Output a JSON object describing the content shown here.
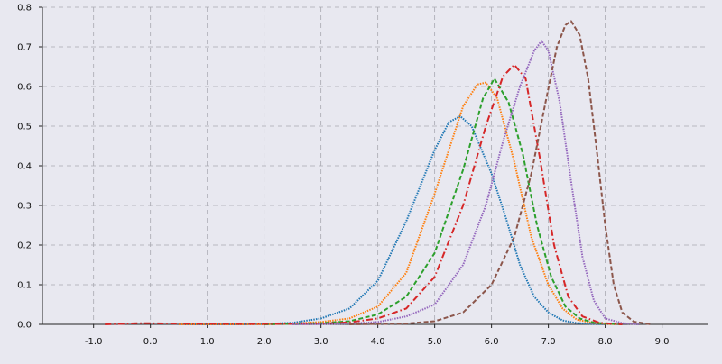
{
  "chart_data": {
    "type": "line",
    "title": "",
    "xlabel": "",
    "ylabel": "",
    "xlim": [
      -1.9,
      9.8
    ],
    "ylim": [
      0,
      0.8
    ],
    "x_ticks": [
      -1.0,
      0.0,
      1.0,
      2.0,
      3.0,
      4.0,
      5.0,
      6.0,
      7.0,
      8.0,
      9.0
    ],
    "y_ticks": [
      0.0,
      0.1,
      0.2,
      0.3,
      0.4,
      0.5,
      0.6,
      0.7,
      0.8
    ],
    "grid": true,
    "legend": "none",
    "background": "#e8e8f0",
    "series": [
      {
        "color": "#1f77b4",
        "dash": "dotted",
        "points": [
          [
            0.6,
            0.0
          ],
          [
            1.5,
            0.0
          ],
          [
            2.0,
            0.001
          ],
          [
            2.5,
            0.004
          ],
          [
            3.0,
            0.015
          ],
          [
            3.5,
            0.04
          ],
          [
            4.0,
            0.11
          ],
          [
            4.5,
            0.26
          ],
          [
            5.0,
            0.44
          ],
          [
            5.25,
            0.51
          ],
          [
            5.45,
            0.525
          ],
          [
            5.65,
            0.5
          ],
          [
            6.0,
            0.38
          ],
          [
            6.25,
            0.27
          ],
          [
            6.5,
            0.15
          ],
          [
            6.75,
            0.07
          ],
          [
            7.0,
            0.03
          ],
          [
            7.25,
            0.01
          ],
          [
            7.5,
            0.003
          ],
          [
            8.0,
            0.0
          ]
        ]
      },
      {
        "color": "#ff7f0e",
        "dash": "dotted",
        "points": [
          [
            0.5,
            0.0
          ],
          [
            2.0,
            0.0
          ],
          [
            2.5,
            0.002
          ],
          [
            3.0,
            0.006
          ],
          [
            3.5,
            0.015
          ],
          [
            4.0,
            0.045
          ],
          [
            4.5,
            0.13
          ],
          [
            5.0,
            0.33
          ],
          [
            5.5,
            0.55
          ],
          [
            5.75,
            0.605
          ],
          [
            5.9,
            0.61
          ],
          [
            6.1,
            0.57
          ],
          [
            6.4,
            0.41
          ],
          [
            6.7,
            0.22
          ],
          [
            7.0,
            0.1
          ],
          [
            7.25,
            0.04
          ],
          [
            7.5,
            0.012
          ],
          [
            7.8,
            0.003
          ],
          [
            8.2,
            0.0
          ]
        ]
      },
      {
        "color": "#2ca02c",
        "dash": "dashed",
        "points": [
          [
            2.0,
            0.0
          ],
          [
            3.0,
            0.003
          ],
          [
            3.5,
            0.008
          ],
          [
            4.0,
            0.025
          ],
          [
            4.5,
            0.07
          ],
          [
            5.0,
            0.18
          ],
          [
            5.5,
            0.39
          ],
          [
            5.85,
            0.57
          ],
          [
            6.05,
            0.62
          ],
          [
            6.3,
            0.56
          ],
          [
            6.55,
            0.43
          ],
          [
            6.8,
            0.25
          ],
          [
            7.05,
            0.12
          ],
          [
            7.3,
            0.045
          ],
          [
            7.55,
            0.015
          ],
          [
            7.8,
            0.004
          ],
          [
            8.3,
            0.0
          ]
        ]
      },
      {
        "color": "#d62728",
        "dash": "dashdot",
        "points": [
          [
            -0.8,
            0.0
          ],
          [
            -0.2,
            0.003
          ],
          [
            0.5,
            0.002
          ],
          [
            2.0,
            0.001
          ],
          [
            3.0,
            0.002
          ],
          [
            3.5,
            0.005
          ],
          [
            4.0,
            0.015
          ],
          [
            4.5,
            0.04
          ],
          [
            5.0,
            0.12
          ],
          [
            5.5,
            0.3
          ],
          [
            5.9,
            0.5
          ],
          [
            6.2,
            0.625
          ],
          [
            6.4,
            0.655
          ],
          [
            6.6,
            0.62
          ],
          [
            6.85,
            0.42
          ],
          [
            7.1,
            0.2
          ],
          [
            7.35,
            0.07
          ],
          [
            7.6,
            0.02
          ],
          [
            7.9,
            0.004
          ],
          [
            8.3,
            0.0
          ]
        ]
      },
      {
        "color": "#9467bd",
        "dash": "dotted",
        "points": [
          [
            2.5,
            0.0
          ],
          [
            3.5,
            0.002
          ],
          [
            4.0,
            0.006
          ],
          [
            4.5,
            0.02
          ],
          [
            5.0,
            0.05
          ],
          [
            5.5,
            0.15
          ],
          [
            5.9,
            0.3
          ],
          [
            6.2,
            0.46
          ],
          [
            6.5,
            0.6
          ],
          [
            6.75,
            0.69
          ],
          [
            6.88,
            0.715
          ],
          [
            7.0,
            0.69
          ],
          [
            7.2,
            0.56
          ],
          [
            7.4,
            0.36
          ],
          [
            7.6,
            0.17
          ],
          [
            7.8,
            0.06
          ],
          [
            8.0,
            0.015
          ],
          [
            8.3,
            0.003
          ],
          [
            8.6,
            0.0
          ]
        ]
      },
      {
        "color": "#8c564b",
        "dash": "dashed",
        "points": [
          [
            3.5,
            0.0
          ],
          [
            4.5,
            0.002
          ],
          [
            5.0,
            0.008
          ],
          [
            5.5,
            0.03
          ],
          [
            6.0,
            0.1
          ],
          [
            6.4,
            0.22
          ],
          [
            6.7,
            0.38
          ],
          [
            6.95,
            0.56
          ],
          [
            7.15,
            0.7
          ],
          [
            7.3,
            0.755
          ],
          [
            7.4,
            0.765
          ],
          [
            7.55,
            0.73
          ],
          [
            7.7,
            0.62
          ],
          [
            7.85,
            0.44
          ],
          [
            8.0,
            0.25
          ],
          [
            8.15,
            0.1
          ],
          [
            8.3,
            0.03
          ],
          [
            8.5,
            0.007
          ],
          [
            8.8,
            0.0
          ]
        ]
      }
    ]
  }
}
